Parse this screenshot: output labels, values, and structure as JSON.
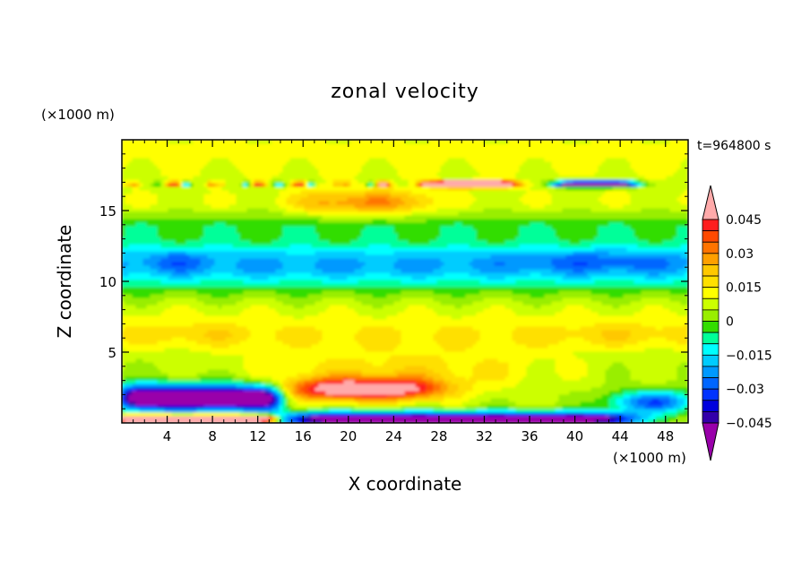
{
  "chart_data": {
    "type": "heatmap",
    "title": "zonal velocity",
    "xlabel": "X coordinate",
    "ylabel": "Z coordinate",
    "x_unit": "(×1000 m)",
    "y_unit": "(×1000 m)",
    "time_label": "t=964800 s",
    "xlim": [
      0,
      50
    ],
    "ylim": [
      0,
      20
    ],
    "x_ticks": [
      4,
      8,
      12,
      16,
      20,
      24,
      28,
      32,
      36,
      40,
      44,
      48
    ],
    "y_ticks": [
      5,
      10,
      15
    ],
    "colorbar": {
      "labels": [
        "0.045",
        "0.03",
        "0.015",
        "0",
        "−0.015",
        "−0.03",
        "−0.045"
      ],
      "label_values": [
        0.045,
        0.03,
        0.015,
        0,
        -0.015,
        -0.03,
        -0.045
      ],
      "levels": [
        0.045,
        0.04,
        0.035,
        0.03,
        0.025,
        0.02,
        0.015,
        0.01,
        0.005,
        0,
        -0.005,
        -0.01,
        -0.015,
        -0.02,
        -0.025,
        -0.03,
        -0.035,
        -0.04,
        -0.045
      ],
      "colors": [
        "#ffaaaa",
        "#ff1e1e",
        "#ff4a00",
        "#ff7400",
        "#ffa000",
        "#ffc800",
        "#ffe000",
        "#ffff00",
        "#ccff00",
        "#99ee00",
        "#33dd00",
        "#00ff99",
        "#00ffff",
        "#00ccff",
        "#0099ff",
        "#0066ff",
        "#0033ff",
        "#0000dd",
        "#3300aa",
        "#9900aa"
      ],
      "extend": "both"
    },
    "features": [
      {
        "x": [
          0,
          14
        ],
        "z": [
          0.7,
          3.0
        ],
        "u": -0.05
      },
      {
        "x": [
          16,
          27
        ],
        "z": [
          1.5,
          3.5
        ],
        "u": 0.05
      },
      {
        "x": [
          14,
          50
        ],
        "z": [
          0,
          0.7
        ],
        "u": -0.05
      },
      {
        "x": [
          0,
          14
        ],
        "z": [
          0,
          0.6
        ],
        "u": 0.05
      },
      {
        "x": [
          0,
          50
        ],
        "z": [
          10,
          13
        ],
        "u": -0.03
      },
      {
        "x": [
          0,
          50
        ],
        "z": [
          5,
          8
        ],
        "u": 0.015
      },
      {
        "x": [
          28,
          34
        ],
        "z": [
          16.6,
          17.1
        ],
        "u": 0.05
      },
      {
        "x": [
          39,
          45
        ],
        "z": [
          16.6,
          17.1
        ],
        "u": -0.045
      }
    ]
  }
}
